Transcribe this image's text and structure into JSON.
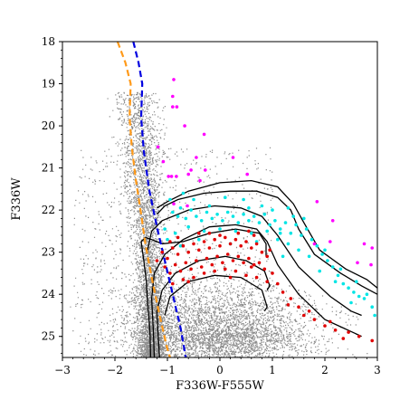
{
  "chart_data": {
    "type": "scatter",
    "title": "",
    "xlabel": "F336W-F555W",
    "ylabel": "F336W",
    "xlim": [
      -3,
      3
    ],
    "ylim": [
      25.5,
      18
    ],
    "y_inverted": true,
    "grid": false,
    "legend": "none",
    "xticks": [
      -3,
      -2,
      -1,
      0,
      1,
      2,
      3
    ],
    "yticks": [
      18,
      19,
      20,
      21,
      22,
      23,
      24,
      25
    ],
    "xtick_labels": [
      "−3",
      "−2",
      "−1",
      "0",
      "1",
      "2",
      "3"
    ],
    "ytick_labels": [
      "18",
      "19",
      "20",
      "21",
      "22",
      "23",
      "24",
      "25"
    ],
    "colors": {
      "field_stars": "#8c8c8c",
      "magenta_stars": "#ff00ff",
      "cyan_stars": "#00e5e5",
      "red_stars": "#e00000",
      "orange_line": "#ff9a1a",
      "blue_line": "#0000e0",
      "isochrones": "#000000"
    },
    "field_population": {
      "approx_count": 9000,
      "blue_sequence_core": [
        [
          -1.6,
          19.2
        ],
        [
          -1.5,
          20.5
        ],
        [
          -1.45,
          21.5
        ],
        [
          -1.4,
          22.5
        ],
        [
          -1.35,
          23.5
        ],
        [
          -1.3,
          24.5
        ],
        [
          -1.3,
          25.5
        ]
      ],
      "red_clump_center": [
        0.0,
        24.9
      ],
      "red_clump_spread": [
        0.9,
        0.45
      ],
      "upper_envelope_x": 1.0
    },
    "magenta_stars": [
      [
        -0.88,
        18.9
      ],
      [
        -0.9,
        19.3
      ],
      [
        -0.9,
        19.55
      ],
      [
        -0.82,
        19.55
      ],
      [
        -0.67,
        20.0
      ],
      [
        -0.3,
        20.2
      ],
      [
        -1.18,
        20.5
      ],
      [
        -0.45,
        20.75
      ],
      [
        0.25,
        20.75
      ],
      [
        -1.08,
        20.85
      ],
      [
        -0.55,
        21.05
      ],
      [
        -0.28,
        21.05
      ],
      [
        -0.98,
        21.2
      ],
      [
        -0.92,
        21.2
      ],
      [
        -0.83,
        21.2
      ],
      [
        -0.6,
        21.15
      ],
      [
        -0.38,
        21.3
      ],
      [
        0.52,
        21.15
      ],
      [
        -0.88,
        21.85
      ],
      [
        -0.62,
        21.9
      ],
      [
        1.85,
        21.8
      ],
      [
        2.15,
        22.25
      ],
      [
        2.1,
        22.75
      ],
      [
        2.75,
        22.8
      ],
      [
        2.9,
        22.9
      ],
      [
        2.88,
        23.3
      ],
      [
        1.8,
        22.8
      ],
      [
        2.62,
        23.25
      ]
    ],
    "cyan_stars": [
      [
        -0.95,
        21.75
      ],
      [
        -0.9,
        22.05
      ],
      [
        -0.8,
        22.15
      ],
      [
        -0.75,
        21.95
      ],
      [
        -0.65,
        22.2
      ],
      [
        -0.55,
        22.0
      ],
      [
        -0.45,
        22.15
      ],
      [
        -0.35,
        22.25
      ],
      [
        -0.25,
        22.05
      ],
      [
        -0.15,
        22.2
      ],
      [
        -0.05,
        22.1
      ],
      [
        0.05,
        22.25
      ],
      [
        0.15,
        22.05
      ],
      [
        0.25,
        22.15
      ],
      [
        0.35,
        22.3
      ],
      [
        0.45,
        22.1
      ],
      [
        0.55,
        22.25
      ],
      [
        0.65,
        22.15
      ],
      [
        0.75,
        22.3
      ],
      [
        0.85,
        22.1
      ],
      [
        0.95,
        22.35
      ],
      [
        1.05,
        22.25
      ],
      [
        1.15,
        22.45
      ],
      [
        1.25,
        22.3
      ],
      [
        1.35,
        22.55
      ],
      [
        1.45,
        22.35
      ],
      [
        1.55,
        22.6
      ],
      [
        1.65,
        22.45
      ],
      [
        1.75,
        22.7
      ],
      [
        1.85,
        22.85
      ],
      [
        1.95,
        23.05
      ],
      [
        2.05,
        23.2
      ],
      [
        2.15,
        23.35
      ],
      [
        2.25,
        23.55
      ],
      [
        2.35,
        23.75
      ],
      [
        2.45,
        23.85
      ],
      [
        2.55,
        23.95
      ],
      [
        2.65,
        24.05
      ],
      [
        2.75,
        24.1
      ],
      [
        2.9,
        24.3
      ],
      [
        -1.05,
        22.45
      ],
      [
        -0.85,
        22.55
      ],
      [
        -0.6,
        22.4
      ],
      [
        -0.3,
        22.5
      ],
      [
        0.0,
        22.45
      ],
      [
        0.3,
        22.5
      ],
      [
        0.6,
        22.55
      ],
      [
        0.9,
        22.5
      ],
      [
        1.1,
        22.7
      ],
      [
        1.3,
        22.8
      ],
      [
        1.5,
        22.95
      ],
      [
        1.7,
        23.1
      ],
      [
        -0.7,
        21.6
      ],
      [
        -0.5,
        21.75
      ],
      [
        0.1,
        21.7
      ],
      [
        0.45,
        21.75
      ],
      [
        0.8,
        21.9
      ],
      [
        1.3,
        21.95
      ],
      [
        1.6,
        22.2
      ],
      [
        -1.0,
        22.7
      ],
      [
        -0.75,
        22.85
      ],
      [
        -0.4,
        22.7
      ],
      [
        0.2,
        22.8
      ],
      [
        0.7,
        22.75
      ],
      [
        1.2,
        23.1
      ],
      [
        1.9,
        23.45
      ],
      [
        2.2,
        23.7
      ],
      [
        2.5,
        24.2
      ],
      [
        -0.2,
        21.9
      ],
      [
        0.55,
        21.95
      ],
      [
        1.0,
        22.0
      ],
      [
        1.4,
        22.15
      ],
      [
        2.0,
        22.95
      ],
      [
        2.3,
        23.4
      ],
      [
        2.6,
        23.7
      ],
      [
        2.95,
        24.5
      ],
      [
        2.8,
        24.0
      ],
      [
        1.15,
        22.55
      ]
    ],
    "red_stars": [
      [
        -1.1,
        23.0
      ],
      [
        -1.0,
        23.15
      ],
      [
        -0.9,
        22.9
      ],
      [
        -0.8,
        23.05
      ],
      [
        -0.7,
        22.85
      ],
      [
        -0.6,
        23.0
      ],
      [
        -0.5,
        22.8
      ],
      [
        -0.4,
        22.95
      ],
      [
        -0.3,
        22.75
      ],
      [
        -0.2,
        22.9
      ],
      [
        -0.1,
        22.7
      ],
      [
        0.0,
        22.85
      ],
      [
        0.1,
        22.65
      ],
      [
        0.2,
        22.8
      ],
      [
        0.3,
        22.7
      ],
      [
        0.4,
        22.85
      ],
      [
        0.5,
        22.75
      ],
      [
        0.6,
        22.9
      ],
      [
        0.7,
        22.8
      ],
      [
        0.8,
        23.0
      ],
      [
        0.9,
        23.1
      ],
      [
        -1.05,
        23.35
      ],
      [
        -0.95,
        23.5
      ],
      [
        -0.85,
        23.3
      ],
      [
        -0.75,
        23.45
      ],
      [
        -0.65,
        23.25
      ],
      [
        -0.55,
        23.4
      ],
      [
        -0.45,
        23.2
      ],
      [
        -0.35,
        23.35
      ],
      [
        -0.25,
        23.15
      ],
      [
        -0.15,
        23.3
      ],
      [
        -0.05,
        23.1
      ],
      [
        0.05,
        23.25
      ],
      [
        0.15,
        23.05
      ],
      [
        0.25,
        23.2
      ],
      [
        0.35,
        23.1
      ],
      [
        0.45,
        23.25
      ],
      [
        0.55,
        23.15
      ],
      [
        0.65,
        23.3
      ],
      [
        0.75,
        23.25
      ],
      [
        0.85,
        23.4
      ],
      [
        -0.9,
        23.75
      ],
      [
        -0.7,
        23.65
      ],
      [
        -0.5,
        23.6
      ],
      [
        -0.3,
        23.5
      ],
      [
        -0.1,
        23.45
      ],
      [
        0.1,
        23.4
      ],
      [
        0.3,
        23.45
      ],
      [
        0.5,
        23.55
      ],
      [
        0.7,
        23.6
      ],
      [
        0.9,
        23.7
      ],
      [
        -0.8,
        22.65
      ],
      [
        -0.4,
        22.55
      ],
      [
        0.0,
        22.6
      ],
      [
        0.35,
        22.55
      ],
      [
        0.65,
        22.6
      ],
      [
        1.0,
        23.5
      ],
      [
        1.1,
        23.75
      ],
      [
        1.2,
        23.95
      ],
      [
        1.35,
        24.1
      ],
      [
        1.5,
        24.3
      ],
      [
        1.6,
        24.5
      ],
      [
        1.8,
        24.6
      ],
      [
        2.0,
        24.75
      ],
      [
        2.2,
        24.85
      ],
      [
        2.45,
        24.9
      ],
      [
        2.65,
        25.0
      ],
      [
        2.9,
        25.1
      ],
      [
        1.3,
        24.25
      ],
      [
        1.7,
        24.4
      ],
      [
        -1.2,
        23.2
      ],
      [
        -0.95,
        22.75
      ],
      [
        -0.2,
        22.55
      ],
      [
        0.55,
        22.5
      ],
      [
        0.95,
        22.95
      ],
      [
        -0.6,
        23.7
      ],
      [
        0.2,
        23.6
      ],
      [
        0.6,
        23.35
      ],
      [
        2.35,
        25.05
      ],
      [
        2.1,
        24.65
      ]
    ],
    "orange_line": [
      [
        -1.95,
        18.0
      ],
      [
        -1.8,
        18.5
      ],
      [
        -1.7,
        19.0
      ],
      [
        -1.72,
        19.8
      ],
      [
        -1.68,
        20.5
      ],
      [
        -1.6,
        21.3
      ],
      [
        -1.5,
        22.1
      ],
      [
        -1.42,
        22.8
      ],
      [
        -1.3,
        23.6
      ],
      [
        -1.15,
        24.5
      ],
      [
        -1.0,
        25.3
      ],
      [
        -0.95,
        25.5
      ]
    ],
    "blue_line": [
      [
        -1.65,
        18.0
      ],
      [
        -1.55,
        18.5
      ],
      [
        -1.48,
        19.0
      ],
      [
        -1.5,
        19.8
      ],
      [
        -1.45,
        20.6
      ],
      [
        -1.35,
        21.5
      ],
      [
        -1.2,
        22.4
      ],
      [
        -1.05,
        23.2
      ],
      [
        -0.9,
        24.0
      ],
      [
        -0.75,
        24.8
      ],
      [
        -0.65,
        25.5
      ]
    ],
    "isochrones": [
      [
        [
          -1.32,
          25.5
        ],
        [
          -1.33,
          25.0
        ],
        [
          -1.35,
          24.6
        ],
        [
          -1.38,
          24.2
        ],
        [
          -1.4,
          23.7
        ],
        [
          -1.45,
          23.2
        ],
        [
          -1.5,
          22.75
        ],
        [
          -1.42,
          22.65
        ],
        [
          -1.3,
          22.7
        ],
        [
          -1.1,
          22.8
        ],
        [
          -0.7,
          22.75
        ],
        [
          -0.2,
          22.55
        ],
        [
          0.3,
          22.45
        ],
        [
          0.75,
          22.55
        ],
        [
          0.88,
          22.8
        ],
        [
          0.88,
          23.1
        ]
      ],
      [
        [
          -1.25,
          25.5
        ],
        [
          -1.27,
          24.8
        ],
        [
          -1.3,
          24.1
        ],
        [
          -1.25,
          23.5
        ],
        [
          -1.05,
          23.05
        ],
        [
          -0.7,
          22.7
        ],
        [
          -0.2,
          22.4
        ],
        [
          0.3,
          22.35
        ],
        [
          0.7,
          22.45
        ],
        [
          0.9,
          22.75
        ],
        [
          1.1,
          23.3
        ],
        [
          1.5,
          24.0
        ],
        [
          2.0,
          24.6
        ],
        [
          2.7,
          25.0
        ]
      ],
      [
        [
          -1.15,
          25.5
        ],
        [
          -1.18,
          24.9
        ],
        [
          -1.2,
          24.4
        ],
        [
          -1.1,
          23.9
        ],
        [
          -0.85,
          23.5
        ],
        [
          -0.4,
          23.2
        ],
        [
          0.1,
          23.1
        ],
        [
          0.5,
          23.2
        ],
        [
          0.85,
          23.45
        ],
        [
          0.95,
          23.8
        ],
        [
          0.9,
          23.9
        ]
      ],
      [
        [
          -1.05,
          24.5
        ],
        [
          -0.95,
          24.05
        ],
        [
          -0.6,
          23.7
        ],
        [
          -0.1,
          23.55
        ],
        [
          0.4,
          23.6
        ],
        [
          0.8,
          23.9
        ],
        [
          0.9,
          24.3
        ],
        [
          0.85,
          24.4
        ]
      ],
      [
        [
          -1.2,
          22.1
        ],
        [
          -1.05,
          21.9
        ],
        [
          -0.8,
          21.75
        ],
        [
          -0.3,
          21.6
        ],
        [
          0.2,
          21.55
        ],
        [
          0.7,
          21.55
        ],
        [
          1.1,
          21.7
        ],
        [
          1.35,
          22.0
        ],
        [
          1.5,
          22.45
        ],
        [
          1.8,
          23.05
        ],
        [
          2.3,
          23.5
        ],
        [
          2.7,
          23.8
        ],
        [
          3.0,
          24.0
        ]
      ],
      [
        [
          -1.2,
          21.95
        ],
        [
          -1.0,
          21.8
        ],
        [
          -0.6,
          21.55
        ],
        [
          0.0,
          21.35
        ],
        [
          0.6,
          21.3
        ],
        [
          1.1,
          21.45
        ],
        [
          1.4,
          21.85
        ],
        [
          1.6,
          22.3
        ],
        [
          1.9,
          22.95
        ],
        [
          2.4,
          23.4
        ],
        [
          2.8,
          23.65
        ],
        [
          3.0,
          23.85
        ]
      ],
      [
        [
          -1.38,
          22.95
        ],
        [
          -1.3,
          22.5
        ],
        [
          -1.1,
          22.25
        ],
        [
          -0.6,
          22.0
        ],
        [
          -0.1,
          21.9
        ],
        [
          0.4,
          21.95
        ],
        [
          0.8,
          22.15
        ],
        [
          1.1,
          22.6
        ],
        [
          1.5,
          23.35
        ],
        [
          2.1,
          24.05
        ],
        [
          2.5,
          24.4
        ],
        [
          2.7,
          24.5
        ]
      ]
    ]
  }
}
